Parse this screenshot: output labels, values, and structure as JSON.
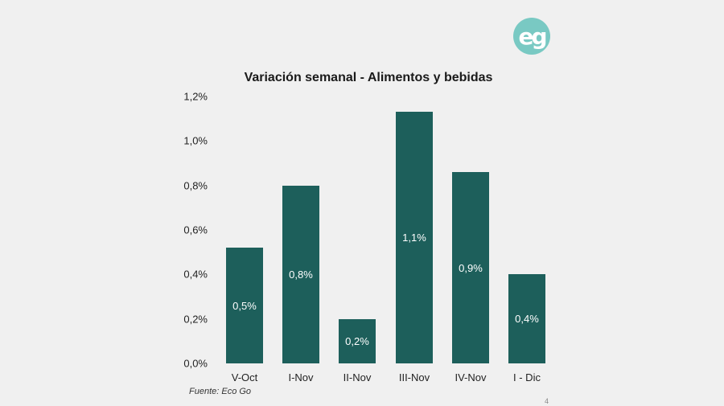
{
  "logo": {
    "text": "eg",
    "color": "#79c9c3"
  },
  "page_number": "4",
  "source": "Fuente: Eco Go",
  "chart_data": {
    "type": "bar",
    "title": "Variación semanal - Alimentos y bebidas",
    "xlabel": "",
    "ylabel": "",
    "categories": [
      "V-Oct",
      "I-Nov",
      "II-Nov",
      "III-Nov",
      "IV-Nov",
      "I - Dic"
    ],
    "values": [
      0.52,
      0.8,
      0.2,
      1.13,
      0.86,
      0.4
    ],
    "data_labels": [
      "0,5%",
      "0,8%",
      "0,2%",
      "1,1%",
      "0,9%",
      "0,4%"
    ],
    "ylim": [
      0,
      1.2
    ],
    "yticks": [
      "0,0%",
      "0,2%",
      "0,4%",
      "0,6%",
      "0,8%",
      "1,0%",
      "1,2%"
    ],
    "grid": false,
    "legend": null,
    "bar_color": "#1d5f5b"
  }
}
